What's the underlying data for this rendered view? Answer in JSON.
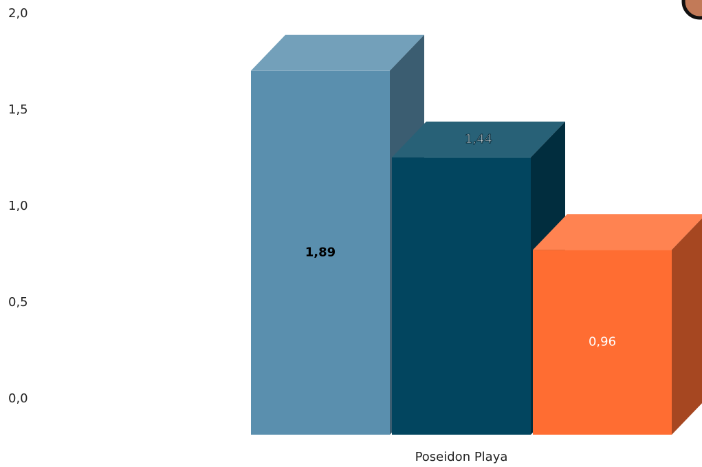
{
  "chart_data": {
    "type": "bar3d",
    "categories": [
      "Poseidon Playa"
    ],
    "series": [
      {
        "color": "#5a8fae",
        "values": [
          1.89
        ],
        "value_labels": [
          "1,89"
        ],
        "label_color": "#000000",
        "label_position": "center"
      },
      {
        "color": "#02455f",
        "values": [
          1.44
        ],
        "value_labels": [
          "1,44"
        ],
        "label_color": "#ffffff",
        "label_position": "top"
      },
      {
        "color": "#ff6d32",
        "values": [
          0.96
        ],
        "value_labels": [
          "0,96"
        ],
        "label_color": "#ffffff",
        "label_position": "center"
      }
    ],
    "ylim": [
      0,
      2
    ],
    "yticks": [
      {
        "value": 0,
        "label": "0,0"
      },
      {
        "value": 0.5,
        "label": "0,5"
      },
      {
        "value": 1,
        "label": "1,0"
      },
      {
        "value": 1.5,
        "label": "1,5"
      },
      {
        "value": 2,
        "label": "2,0"
      }
    ],
    "grid": false
  }
}
